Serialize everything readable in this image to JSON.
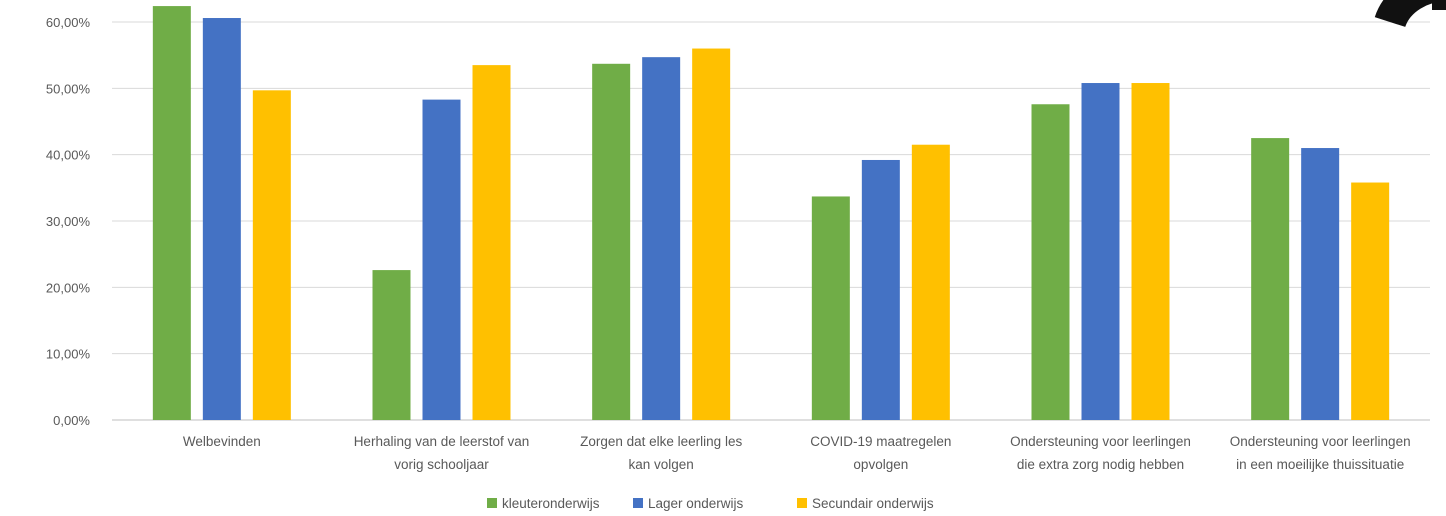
{
  "chart_data": {
    "type": "bar",
    "title": "",
    "xlabel": "",
    "ylabel": "",
    "ylim": [
      0,
      0.6
    ],
    "yticks": [
      0,
      0.1,
      0.2,
      0.3,
      0.4,
      0.5,
      0.6
    ],
    "ytick_labels": [
      "0,00%",
      "10,00%",
      "20,00%",
      "30,00%",
      "40,00%",
      "50,00%",
      "60,00%"
    ],
    "grid": true,
    "legend_position": "bottom",
    "categories": [
      [
        "Welbevinden"
      ],
      [
        "Herhaling van de leerstof van",
        "vorig schooljaar"
      ],
      [
        "Zorgen dat elke leerling les",
        "kan volgen"
      ],
      [
        "COVID-19 maatregelen",
        "opvolgen"
      ],
      [
        "Ondersteuning voor leerlingen",
        "die extra zorg nodig hebben"
      ],
      [
        "Ondersteuning voor leerlingen",
        "in een moeilijke thuissituatie"
      ]
    ],
    "series": [
      {
        "name": "kleuteronderwijs",
        "color": "#70AD47",
        "values": [
          0.624,
          0.226,
          0.537,
          0.337,
          0.476,
          0.425
        ]
      },
      {
        "name": "Lager onderwijs",
        "color": "#4472C4",
        "values": [
          0.606,
          0.483,
          0.547,
          0.392,
          0.508,
          0.41
        ]
      },
      {
        "name": "Secundair onderwijs",
        "color": "#FFC000",
        "values": [
          0.497,
          0.535,
          0.56,
          0.415,
          0.508,
          0.358
        ]
      }
    ]
  }
}
